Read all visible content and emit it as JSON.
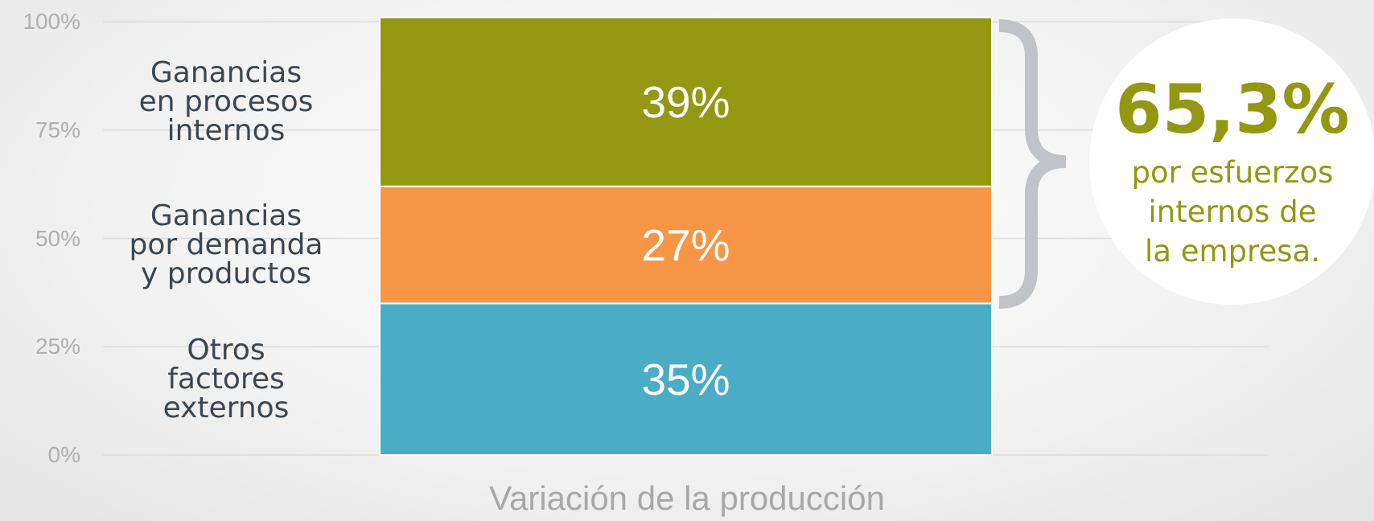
{
  "chart_data": {
    "type": "stacked_bar",
    "categories": [
      "Variación de la producción"
    ],
    "series": [
      {
        "name": "Otros\nfactores\nexternos",
        "color": "#4bacc6",
        "values": [
          35
        ],
        "value_labels": [
          "35%"
        ]
      },
      {
        "name": "Ganancias\npor demanda\ny productos",
        "color": "#f79646",
        "values": [
          27
        ],
        "value_labels": [
          "27%"
        ]
      },
      {
        "name": "Ganancias\nen procesos\ninternos",
        "color": "#949712",
        "values": [
          39
        ],
        "value_labels": [
          "39%"
        ]
      }
    ],
    "ylim": [
      0,
      100
    ],
    "yticks": [
      {
        "value": 0,
        "label": "0%"
      },
      {
        "value": 25,
        "label": "25%"
      },
      {
        "value": 50,
        "label": "50%"
      },
      {
        "value": 75,
        "label": "75%"
      },
      {
        "value": 100,
        "label": "100%"
      }
    ],
    "grid": true,
    "annotation": {
      "value": "65,3%",
      "text": "por esfuerzos\ninternos de\nla empresa."
    }
  }
}
